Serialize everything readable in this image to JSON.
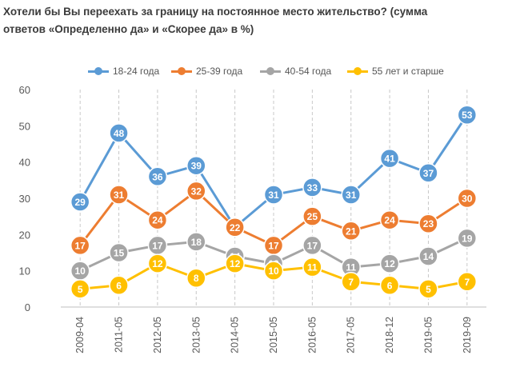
{
  "title": {
    "line1": "Хотели бы Вы переехать за границу на постоянное место жительство? (сумма",
    "line2": "ответов «Определенно да» и «Скорее да» в %)"
  },
  "chart_data": {
    "type": "line",
    "title": "Хотели бы Вы переехать за границу на постоянное место жительство? (сумма ответов «Определенно да» и «Скорее да» в %)",
    "x": [
      "2009-04",
      "2011-05",
      "2012-05",
      "2013-05",
      "2014-05",
      "2015-05",
      "2016-05",
      "2017-05",
      "2018-12",
      "2019-05",
      "2019-09"
    ],
    "ylim": [
      0,
      60
    ],
    "yticks": [
      0,
      10,
      20,
      30,
      40,
      50,
      60
    ],
    "grid": "vertical dashed",
    "legend_position": "top",
    "series": [
      {
        "name": "18-24 года",
        "color": "#5b9bd5",
        "values": [
          29,
          48,
          36,
          39,
          22,
          31,
          33,
          31,
          41,
          37,
          53
        ]
      },
      {
        "name": "25-39 года",
        "color": "#ed7d31",
        "values": [
          17,
          31,
          24,
          32,
          22,
          17,
          25,
          21,
          24,
          23,
          30
        ]
      },
      {
        "name": "40-54 года",
        "color": "#a5a5a5",
        "values": [
          10,
          15,
          17,
          18,
          14,
          12,
          17,
          11,
          12,
          14,
          19
        ]
      },
      {
        "name": "55 лет и старше",
        "color": "#ffc000",
        "values": [
          5,
          6,
          12,
          8,
          12,
          10,
          11,
          7,
          6,
          5,
          7
        ]
      }
    ]
  }
}
